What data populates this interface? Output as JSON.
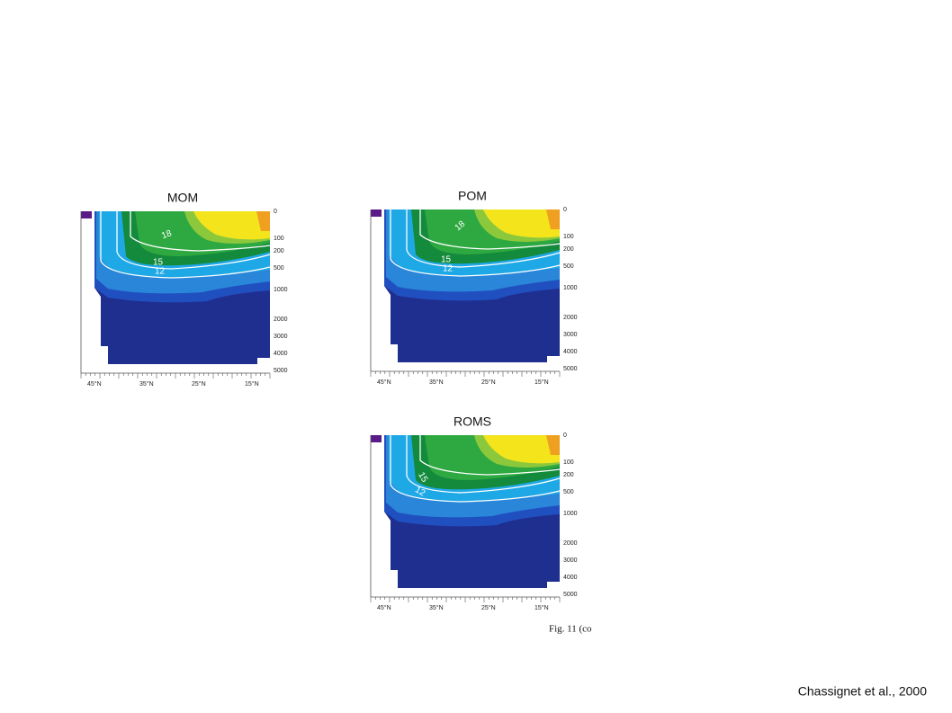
{
  "panels": [
    {
      "title": "MOM",
      "depth_labels": [
        "0",
        "100",
        "200",
        "500",
        "1000",
        "2000",
        "3000",
        "4000",
        "5000"
      ],
      "lat_labels": [
        "45°N",
        "35°N",
        "25°N",
        "15°N"
      ],
      "contour_labels": [
        "18",
        "15",
        "12"
      ]
    },
    {
      "title": "POM",
      "depth_labels": [
        "0",
        "100",
        "200",
        "500",
        "1000",
        "2000",
        "3000",
        "4000",
        "5000"
      ],
      "lat_labels": [
        "45°N",
        "35°N",
        "25°N",
        "15°N"
      ],
      "contour_labels": [
        "18",
        "15",
        "12"
      ]
    },
    {
      "title": "ROMS",
      "depth_labels": [
        "0",
        "100",
        "200",
        "500",
        "1000",
        "2000",
        "3000",
        "4000",
        "5000"
      ],
      "lat_labels": [
        "45°N",
        "35°N",
        "25°N",
        "15°N"
      ],
      "contour_labels": [
        "15",
        "12"
      ]
    }
  ],
  "figure_caption": "Fig. 11 (co",
  "citation": "Chassignet et al., 2000"
}
